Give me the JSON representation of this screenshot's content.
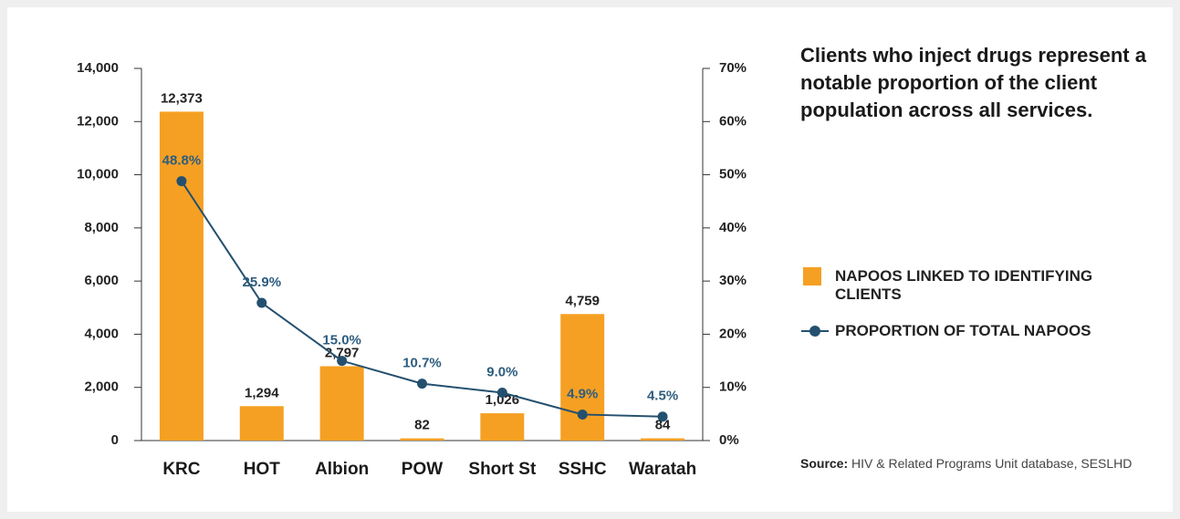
{
  "chart_data": {
    "type": "bar",
    "categories": [
      "KRC",
      "HOT",
      "Albion",
      "POW",
      "Short St",
      "SSHC",
      "Waratah"
    ],
    "series": [
      {
        "name": "NAPOOS LINKED TO IDENTIFYING CLIENTS",
        "type": "bar",
        "color": "#f5a023",
        "values": [
          12373,
          1294,
          2797,
          82,
          1026,
          4759,
          84
        ],
        "value_labels": [
          "12,373",
          "1,294",
          "2,797",
          "82",
          "1,026",
          "4,759",
          "84"
        ]
      },
      {
        "name": "PROPORTION OF TOTAL NAPOOS",
        "type": "line",
        "axis": "y2",
        "color": "#24506f",
        "values": [
          48.8,
          25.9,
          15.0,
          10.7,
          9.0,
          4.9,
          4.5
        ],
        "value_labels": [
          "48.8%",
          "25.9%",
          "15.0%",
          "10.7%",
          "9.0%",
          "4.9%",
          "4.5%"
        ]
      }
    ],
    "ylim": [
      0,
      14000
    ],
    "yticks": [
      0,
      {
        "value": 2000,
        "label": "2,000"
      },
      {
        "value": 4000,
        "label": "4,000"
      },
      {
        "value": 6000,
        "label": "6,000"
      },
      {
        "value": 8000,
        "label": "8,000"
      },
      {
        "value": 10000,
        "label": "10,000"
      },
      {
        "value": 12000,
        "label": "12,000"
      },
      {
        "value": 14000,
        "label": "14,000"
      }
    ],
    "y2lim": [
      0,
      70
    ],
    "y2ticks": [
      {
        "value": 0,
        "label": "0%"
      },
      {
        "value": 10,
        "label": "10%"
      },
      {
        "value": 20,
        "label": "20%"
      },
      {
        "value": 30,
        "label": "30%"
      },
      {
        "value": 40,
        "label": "40%"
      },
      {
        "value": 50,
        "label": "50%"
      },
      {
        "value": 60,
        "label": "60%"
      },
      {
        "value": 70,
        "label": "70%"
      }
    ],
    "annotation": "Clients who inject drugs represent a notable proportion of the client population across all services.",
    "source_label": "Source:",
    "source": "HIV & Related Programs Unit database, SESLHD"
  }
}
